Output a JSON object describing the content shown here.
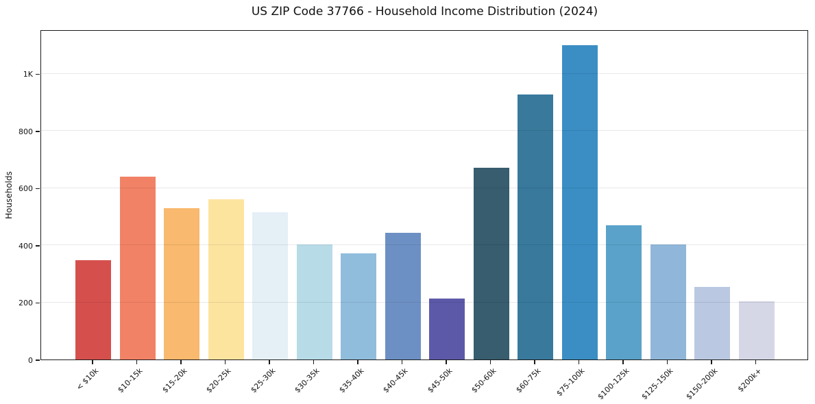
{
  "chart_data": {
    "type": "bar",
    "title": "US ZIP Code 37766 - Household Income Distribution (2024)",
    "xlabel": "",
    "ylabel": "Households",
    "categories": [
      "< $10k",
      "$10-15k",
      "$15-20k",
      "$20-25k",
      "$25-30k",
      "$30-35k",
      "$35-40k",
      "$40-45k",
      "$45-50k",
      "$50-60k",
      "$60-75k",
      "$75-100k",
      "$100-125k",
      "$125-150k",
      "$150-200k",
      "$200k+"
    ],
    "values": [
      348,
      640,
      530,
      562,
      516,
      403,
      372,
      443,
      213,
      671,
      928,
      1100,
      470,
      403,
      255,
      204
    ],
    "bar_colors": [
      "#d5504d",
      "#f28266",
      "#f9b96e",
      "#fde49e",
      "#e4f0f6",
      "#b8dbe8",
      "#90bddc",
      "#6d90c4",
      "#5d59a9",
      "#375d6e",
      "#38799c",
      "#3a8ec4",
      "#5aa2c9",
      "#90b7da",
      "#bac9e1",
      "#d6d7e6"
    ],
    "ylim": [
      0,
      1155
    ],
    "yticks": [
      {
        "value": 0,
        "label": "0"
      },
      {
        "value": 200,
        "label": "200"
      },
      {
        "value": 400,
        "label": "400"
      },
      {
        "value": 600,
        "label": "600"
      },
      {
        "value": 800,
        "label": "800"
      },
      {
        "value": 1000,
        "label": "1K"
      }
    ],
    "grid": "horizontal-only, light gray, drawn over bars with transparency",
    "legend": "none",
    "background_color": "#ffffff",
    "spine_color": "#1a1a1a"
  }
}
